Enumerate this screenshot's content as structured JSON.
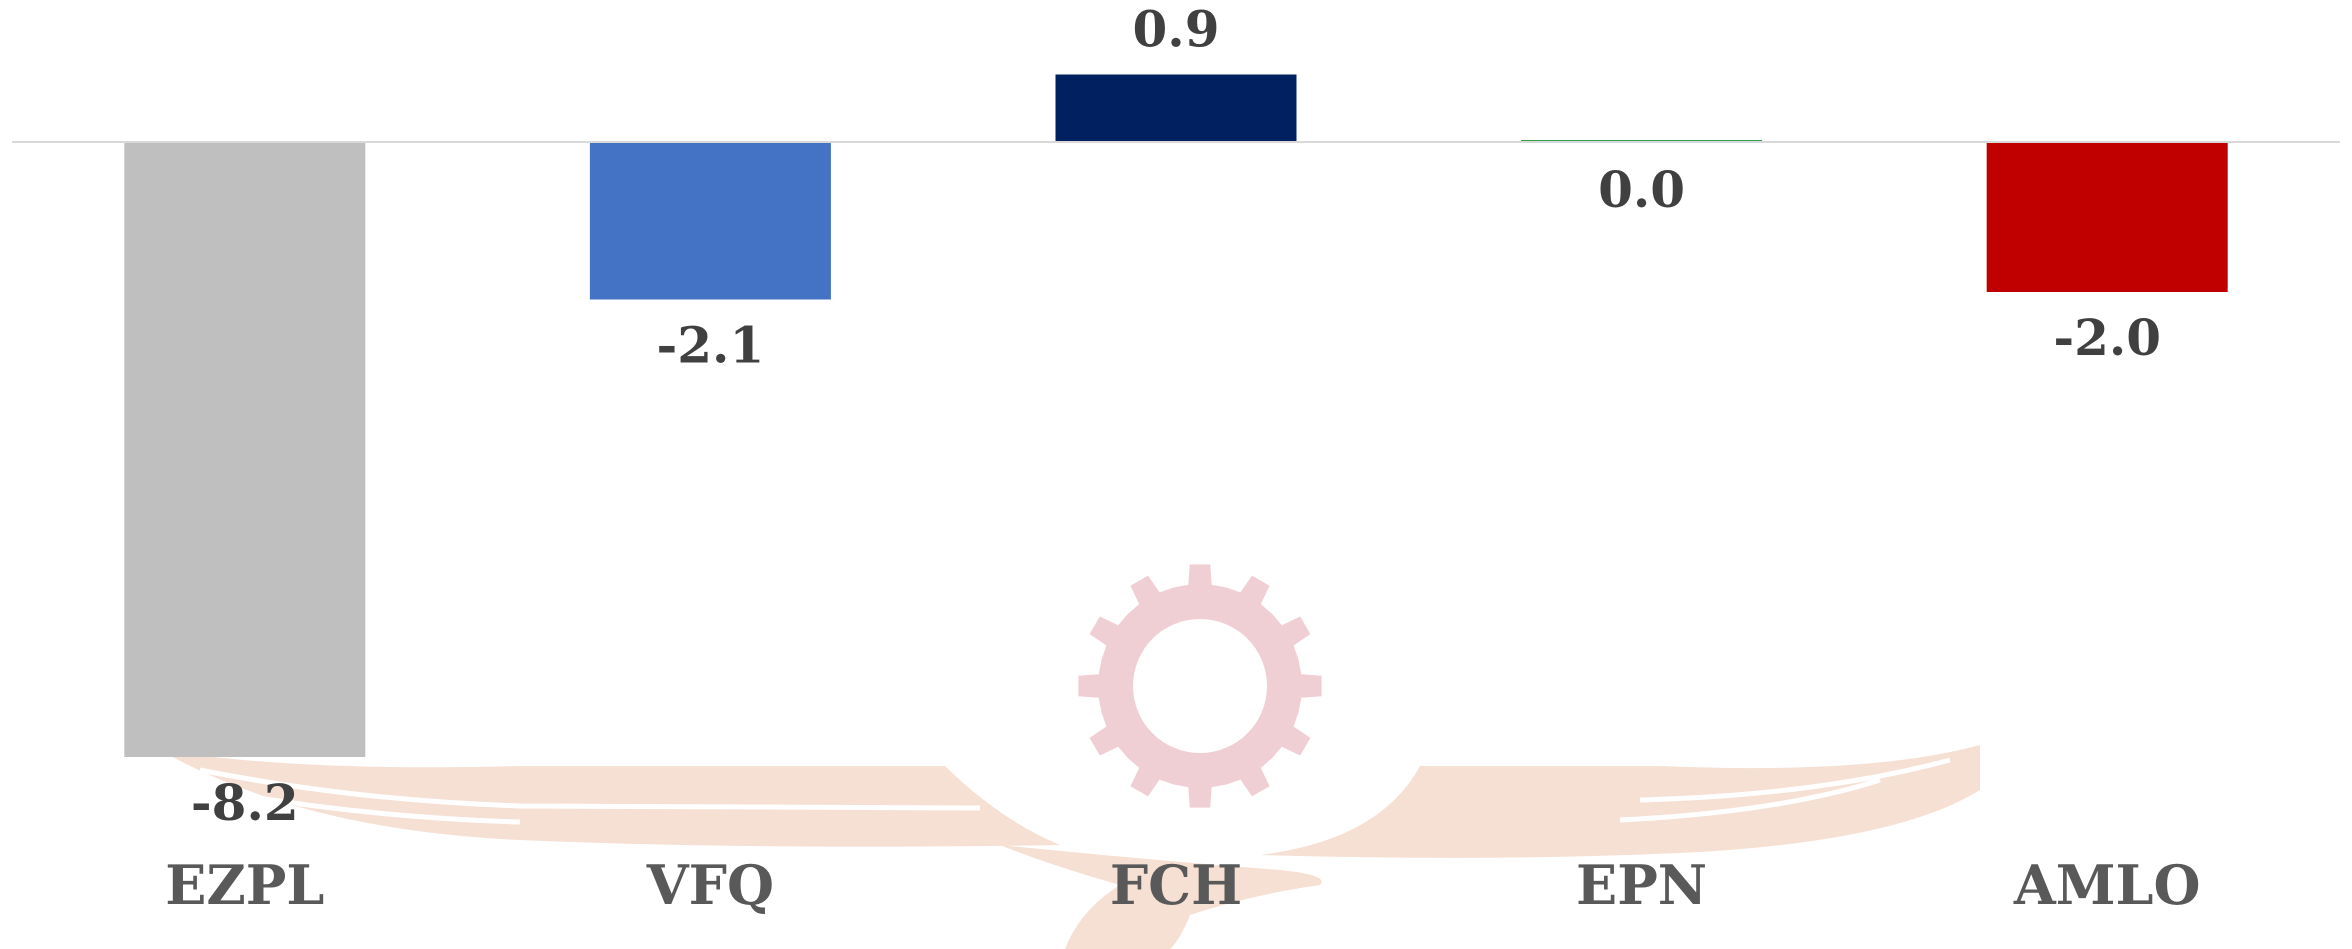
{
  "chart_data": {
    "type": "bar",
    "categories": [
      "EZPL",
      "VFQ",
      "FCH",
      "EPN",
      "AMLO"
    ],
    "values": [
      -8.2,
      -2.1,
      0.9,
      0.0,
      -2.0
    ],
    "value_labels": [
      "-8.2",
      "-2.1",
      "0.9",
      "0.0",
      "-2.0"
    ],
    "bar_colors": [
      "#bfbfbf",
      "#4472c4",
      "#002060",
      "#2e9e4f",
      "#c00000"
    ],
    "title": "",
    "xlabel": "",
    "ylabel": "",
    "ylim": [
      -9.0,
      1.0
    ],
    "grid": false,
    "legend": "none"
  },
  "watermark": {
    "eagle_color": "#f5e0d3",
    "gear_color": "#f0cfd4"
  }
}
